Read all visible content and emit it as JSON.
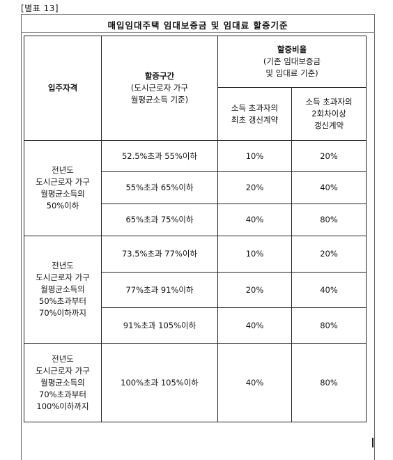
{
  "attachment_label": "[별표 13]",
  "title": "매입임대주택 임대보증금 및 임대료 할증기준",
  "headers": {
    "qualification": "입주자격",
    "range_title": "할증구간",
    "range_sub": [
      "(도시근로자 가구",
      "월평균소득 기준)"
    ],
    "rate_title": "할증비율",
    "rate_sub": [
      "(기존 임대보증금",
      "및 임대료 기준)"
    ],
    "first_renewal": [
      "소득 초과자의",
      "최초 갱신계약"
    ],
    "second_renewal": [
      "소득 초과자의",
      "2회차이상",
      "갱신계약"
    ]
  },
  "groups": [
    {
      "qualification": [
        "전년도",
        "도시근로자 가구",
        "월평균소득의",
        "50%이하"
      ],
      "rows": [
        {
          "range": "52.5%초과 55%이하",
          "first": "10%",
          "second": "20%"
        },
        {
          "range": "55%초과 65%이하",
          "first": "20%",
          "second": "40%"
        },
        {
          "range": "65%초과 75%이하",
          "first": "40%",
          "second": "80%"
        }
      ]
    },
    {
      "qualification": [
        "전년도",
        "도시근로자 가구",
        "월평균소득의",
        "50%초과부터",
        "70%이하까지"
      ],
      "rows": [
        {
          "range": "73.5%초과 77%이하",
          "first": "10%",
          "second": "20%"
        },
        {
          "range": "77%초과 91%이하",
          "first": "20%",
          "second": "40%"
        },
        {
          "range": "91%초과 105%이하",
          "first": "40%",
          "second": "80%"
        }
      ]
    },
    {
      "qualification": [
        "전년도",
        "도시근로자 가구",
        "월평균소득의",
        "70%초과부터",
        "100%이하까지"
      ],
      "rows": [
        {
          "range": "100%초과 105%이하",
          "first": "40%",
          "second": "80%"
        }
      ]
    }
  ]
}
